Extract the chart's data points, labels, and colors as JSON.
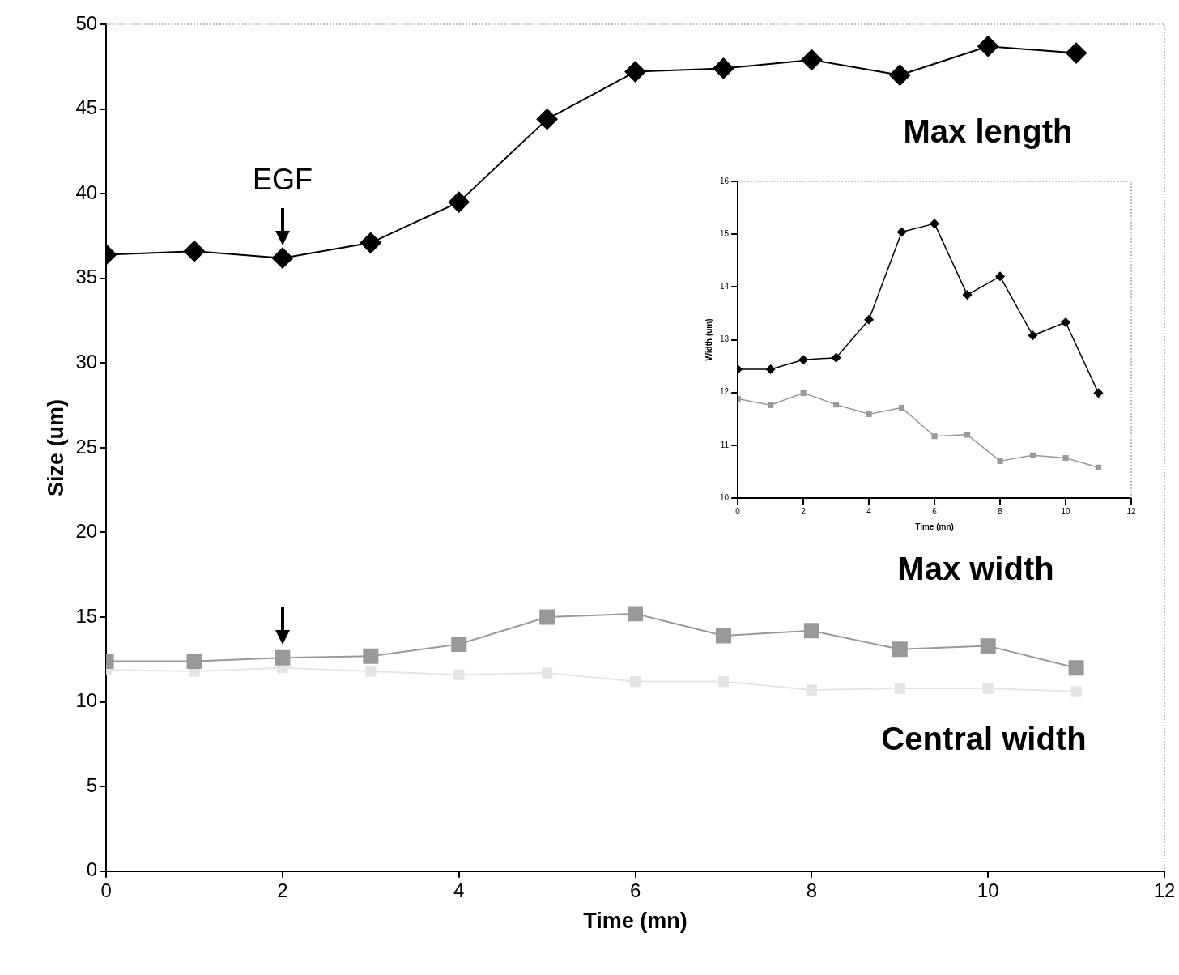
{
  "chart_data": [
    {
      "type": "line",
      "xlabel": "Time (mn)",
      "ylabel": "Size (um)",
      "x": [
        0,
        1,
        2,
        3,
        4,
        5,
        6,
        7,
        8,
        9,
        10,
        11
      ],
      "series": [
        {
          "name": "Max length",
          "color": "#000000",
          "marker": "diamond",
          "values": [
            36.4,
            36.6,
            36.2,
            37.1,
            39.5,
            44.4,
            47.2,
            47.4,
            47.9,
            47.0,
            48.7,
            48.3
          ]
        },
        {
          "name": "Max width",
          "color": "#999999",
          "marker": "square",
          "values": [
            12.4,
            12.4,
            12.6,
            12.7,
            13.4,
            15.0,
            15.2,
            13.9,
            14.2,
            13.1,
            13.3,
            12.0
          ]
        },
        {
          "name": "Central width",
          "color": "#e4e4e4",
          "marker": "square",
          "values": [
            11.9,
            11.8,
            12.0,
            11.8,
            11.6,
            11.7,
            11.2,
            11.2,
            10.7,
            10.8,
            10.8,
            10.6
          ]
        }
      ],
      "xlim": [
        0,
        12
      ],
      "xticks": [
        0,
        2,
        4,
        6,
        8,
        10,
        12
      ],
      "ylim": [
        0,
        50
      ],
      "yticks": [
        0,
        5,
        10,
        15,
        20,
        25,
        30,
        35,
        40,
        45,
        50
      ],
      "annotations": [
        "EGF"
      ],
      "grid": false,
      "legend": false
    },
    {
      "type": "line",
      "xlabel": "Time (mn)",
      "ylabel": "Width (um)",
      "x": [
        0,
        1,
        2,
        3,
        4,
        5,
        6,
        7,
        8,
        9,
        10,
        11
      ],
      "series": [
        {
          "color": "#000000",
          "marker": "diamond",
          "values": [
            12.44,
            12.44,
            12.62,
            12.66,
            13.38,
            15.04,
            15.2,
            13.85,
            14.2,
            13.08,
            13.33,
            11.99
          ]
        },
        {
          "color": "#999999",
          "marker": "square",
          "values": [
            11.88,
            11.76,
            11.99,
            11.77,
            11.59,
            11.71,
            11.17,
            11.2,
            10.7,
            10.81,
            10.76,
            10.58
          ]
        }
      ],
      "xlim": [
        0,
        12
      ],
      "xticks": [
        0,
        2,
        4,
        6,
        8,
        10,
        12
      ],
      "ylim": [
        10,
        16
      ],
      "yticks": [
        10,
        11,
        12,
        13,
        14,
        15,
        16
      ],
      "grid": false,
      "legend": false
    }
  ]
}
